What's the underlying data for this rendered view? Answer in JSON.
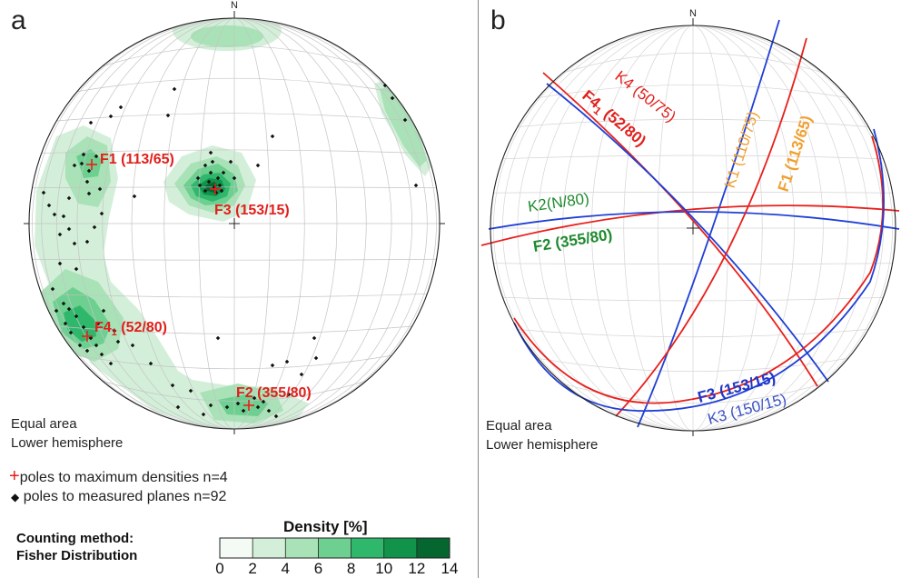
{
  "panel_a": {
    "letter": "a",
    "north": "N",
    "projection": "Equal area",
    "hemisphere": "Lower hemisphere",
    "maxima": [
      {
        "id": "F1",
        "text": "F1 (113/65)",
        "trend": 113,
        "plunge": 65
      },
      {
        "id": "F3",
        "text": "F3 (153/15)",
        "trend": 153,
        "plunge": 15
      },
      {
        "id": "F4_1",
        "main": "F4",
        "sub": "1",
        "rest": " (52/80)",
        "trend": 52,
        "plunge": 80
      },
      {
        "id": "F2",
        "text": "F2 (355/80)",
        "trend": 355,
        "plunge": 80
      }
    ],
    "legend": {
      "maxima_label": "poles to maximum densities n=4",
      "poles_label": "poles to measured planes n=92"
    },
    "counting_method_line1": "Counting method:",
    "counting_method_line2": "Fisher Distribution",
    "density_title": "Density [%]",
    "density_ticks": [
      "0",
      "2",
      "4",
      "6",
      "8",
      "10",
      "12",
      "14"
    ],
    "density_colors": [
      "#f3fbf4",
      "#d3efd9",
      "#a9e2b7",
      "#6dcf90",
      "#2fb86c",
      "#12934b",
      "#05662f"
    ]
  },
  "panel_b": {
    "letter": "b",
    "north": "N",
    "projection": "Equal area",
    "hemisphere": "Lower hemisphere",
    "labels": {
      "k4": "K4 (50/75)",
      "k1": "K1 (110/75)",
      "f1": "F1 (113/65)",
      "f4": {
        "main": "F4",
        "sub": "1",
        "rest": " (52/80)"
      },
      "k2": "K2(N/80)",
      "f2": "F2 (355/80)",
      "f3": "F3 (153/15)",
      "k3": "K3 (150/15)"
    },
    "colors": {
      "fault": "#e8201c",
      "joint": "#1f3fd6",
      "k1": "#f0a030",
      "f1": "#f0a030",
      "k2": "#1f8a2f",
      "f2": "#1f8a2f",
      "k3": "#3b52c4",
      "f3": "#2036c8",
      "k4": "#e8201c",
      "f4": "#e8201c"
    }
  }
}
